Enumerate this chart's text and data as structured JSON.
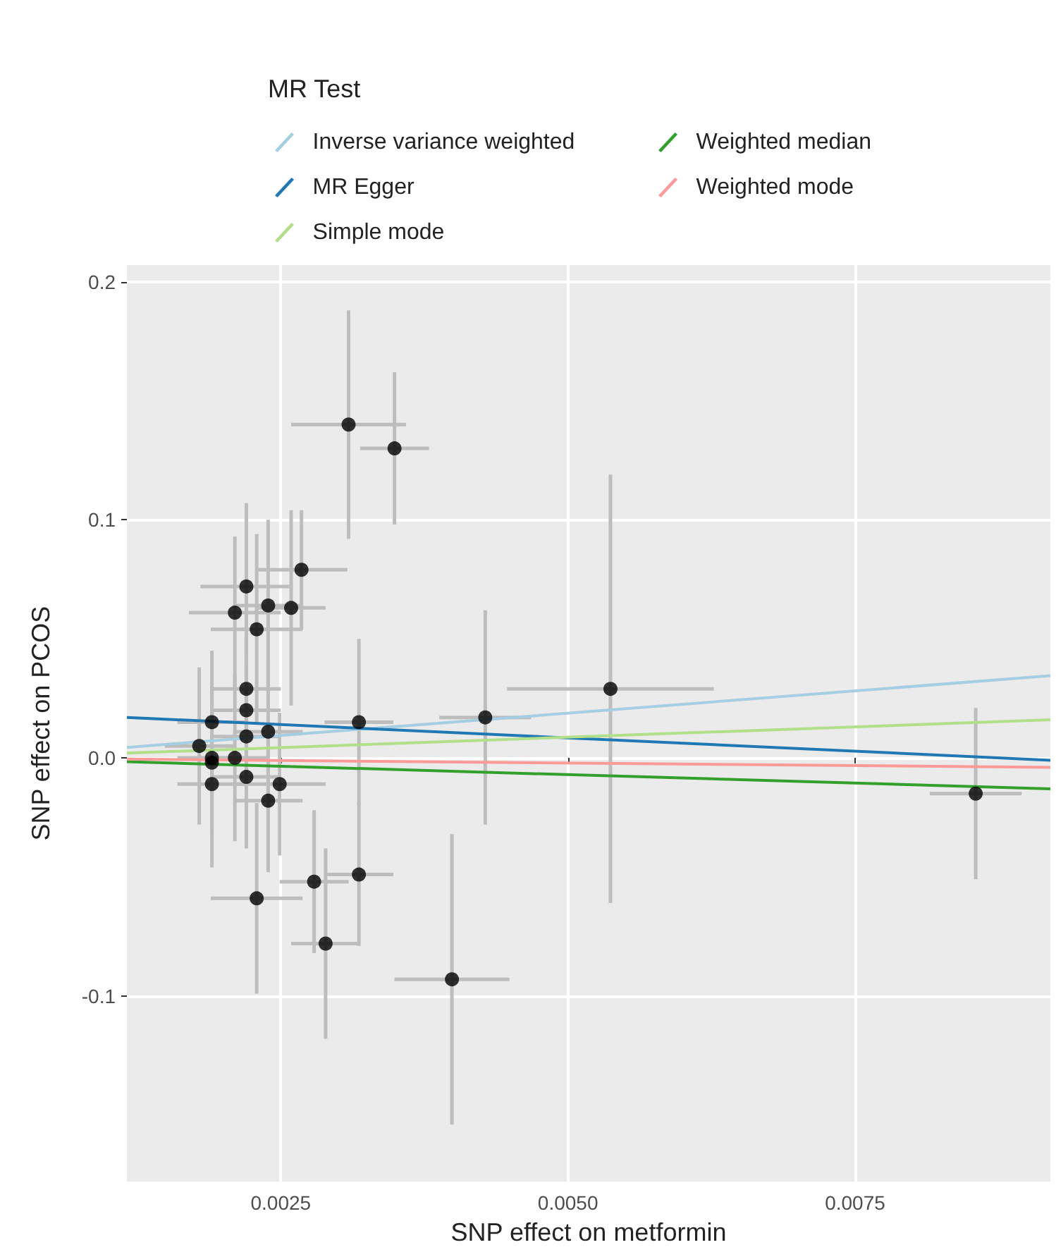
{
  "chart_data": {
    "type": "scatter",
    "xlabel": "SNP effect on metformin",
    "ylabel": "SNP effect on PCOS",
    "legend_title": "MR Test",
    "legend": "top",
    "xlim": [
      0.00116,
      0.0092
    ],
    "xticks": [
      0.0025,
      {
        "value": 0.005,
        "label": "0.0050"
      },
      0.0075
    ],
    "ylim": [
      -0.178,
      0.207
    ],
    "yticks": [
      -0.1,
      {
        "value": 0,
        "label": "0.0"
      },
      0.1,
      0.2
    ],
    "grid": true,
    "series": [
      {
        "marker": "circle",
        "color": "#000000",
        "x": [
          0.00309,
          0.00349,
          0.00268,
          0.0022,
          0.0021,
          0.00239,
          0.00259,
          0.00229,
          0.0022,
          0.0022,
          0.0019,
          0.00318,
          0.00428,
          0.00239,
          0.0022,
          0.00179,
          0.0019,
          0.0021,
          0.0019,
          0.0022,
          0.0019,
          0.00249,
          0.00239,
          0.00229,
          0.00279,
          0.00318,
          0.00289,
          0.00399,
          0.00537,
          0.00855
        ],
        "values": [
          0.14,
          0.13,
          0.079,
          0.072,
          0.061,
          0.064,
          0.063,
          0.054,
          0.029,
          0.02,
          0.015,
          0.015,
          0.017,
          0.011,
          0.009,
          0.005,
          0.0,
          0.0,
          -0.002,
          -0.008,
          -0.011,
          -0.011,
          -0.018,
          -0.059,
          -0.052,
          -0.049,
          -0.078,
          -0.093,
          0.029,
          -0.015
        ],
        "errors": [
          0.048,
          0.032,
          0.025,
          0.035,
          0.032,
          0.036,
          0.041,
          0.04,
          0.03,
          0.03,
          0.03,
          0.035,
          0.045,
          0.03,
          0.035,
          0.033,
          0.03,
          0.035,
          0.03,
          0.03,
          0.035,
          0.03,
          0.03,
          0.04,
          0.03,
          0.03,
          0.04,
          0.061,
          0.09,
          0.036
        ],
        "xerrors": [
          0.0005,
          0.0003,
          0.0004,
          0.0004,
          0.0004,
          0.0003,
          0.0003,
          0.0004,
          0.0003,
          0.0003,
          0.0003,
          0.0003,
          0.0004,
          0.0003,
          0.0003,
          0.0003,
          0.0003,
          0.0003,
          null,
          0.0003,
          0.0003,
          0.0004,
          0.0003,
          0.0004,
          0.0003,
          0.0003,
          0.0003,
          0.0005,
          0.0009,
          0.0004
        ]
      },
      {
        "type": "line",
        "name": "Inverse variance weighted",
        "color": "#a6cee3",
        "x": [
          0.00116,
          0.0092
        ],
        "values": [
          0.0044,
          0.0345
        ]
      },
      {
        "type": "line",
        "name": "MR Egger",
        "color": "#1f78b4",
        "x": [
          0.00116,
          0.0092
        ],
        "values": [
          0.017,
          -0.001
        ]
      },
      {
        "type": "line",
        "name": "Simple mode",
        "color": "#b2df8a",
        "x": [
          0.00116,
          0.0092
        ],
        "values": [
          0.002,
          0.016
        ]
      },
      {
        "type": "line",
        "name": "Weighted median",
        "color": "#33a02c",
        "x": [
          0.00116,
          0.0092
        ],
        "values": [
          -0.0016,
          -0.013
        ]
      },
      {
        "type": "line",
        "name": "Weighted mode",
        "color": "#fb9a99",
        "x": [
          0.00116,
          0.0092
        ],
        "values": [
          -0.0005,
          -0.004
        ]
      }
    ]
  }
}
